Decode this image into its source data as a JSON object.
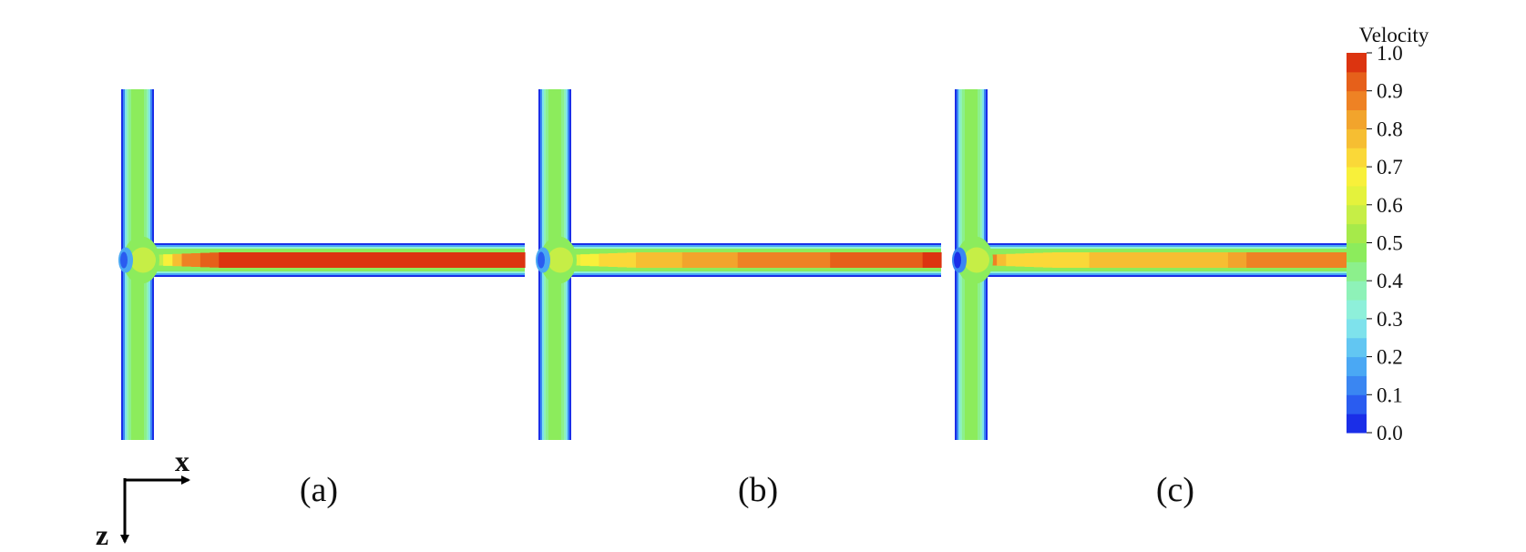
{
  "colorbar": {
    "title": "Velocity",
    "ticks": [
      "1.0",
      "0.9",
      "0.8",
      "0.7",
      "0.6",
      "0.5",
      "0.4",
      "0.3",
      "0.2",
      "0.1",
      "0.0"
    ],
    "min": 0.0,
    "max": 1.0,
    "levels": 20,
    "colors": [
      "#1a2ee8",
      "#2a5cf0",
      "#3a86f2",
      "#4aa8f4",
      "#62c6f2",
      "#7ee2ec",
      "#8ef0da",
      "#8ef2b8",
      "#8cf08c",
      "#8cec5c",
      "#a6ea4a",
      "#c6ee46",
      "#e4f23c",
      "#f8f03a",
      "#fad838",
      "#f6be32",
      "#f2a42c",
      "#ee8224",
      "#e6601a",
      "#dc3410"
    ]
  },
  "panels": [
    {
      "label": "(a)",
      "junction_velocity": 0.05,
      "jet": [
        [
          0.0,
          0.55
        ],
        [
          0.08,
          0.85
        ],
        [
          0.2,
          0.97
        ],
        [
          1.0,
          0.98
        ]
      ]
    },
    {
      "label": "(b)",
      "junction_velocity": 0.05,
      "jet": [
        [
          0.0,
          0.6
        ],
        [
          0.08,
          0.72
        ],
        [
          0.25,
          0.78
        ],
        [
          0.45,
          0.85
        ],
        [
          1.0,
          0.96
        ]
      ]
    },
    {
      "label": "(c)",
      "junction_velocity": 0.0,
      "jet": [
        [
          0.0,
          0.9
        ],
        [
          0.06,
          0.7
        ],
        [
          0.2,
          0.72
        ],
        [
          0.35,
          0.78
        ],
        [
          0.65,
          0.8
        ],
        [
          0.72,
          0.86
        ],
        [
          1.0,
          0.86
        ]
      ]
    }
  ],
  "axes": {
    "x_label": "x",
    "z_label": "z"
  }
}
